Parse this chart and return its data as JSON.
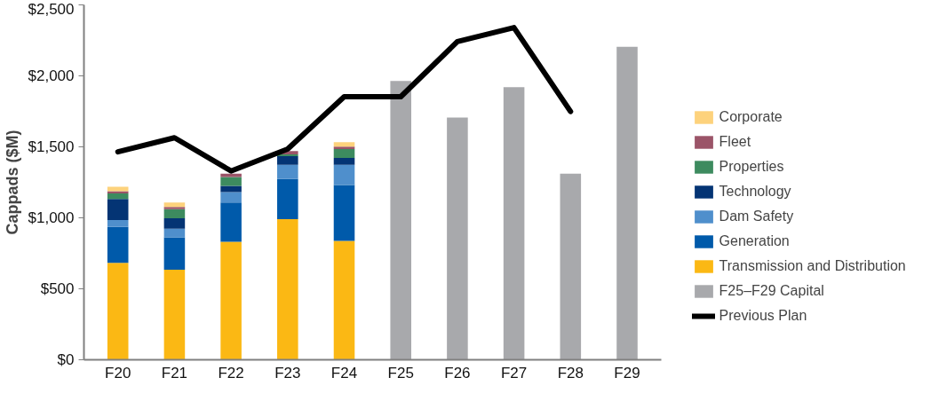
{
  "chart_data": {
    "type": "bar",
    "stacked": true,
    "ylabel": "Cappads ($M)",
    "categories": [
      "F20",
      "F21",
      "F22",
      "F23",
      "F24",
      "F25",
      "F26",
      "F27",
      "F28",
      "F29"
    ],
    "ylim": [
      0,
      2500
    ],
    "yticks": [
      {
        "value": 0,
        "label": "$0"
      },
      {
        "value": 500,
        "label": "$500"
      },
      {
        "value": 1000,
        "label": "$1,000"
      },
      {
        "value": 1500,
        "label": "$1,500"
      },
      {
        "value": 2000,
        "label": "$2,000"
      },
      {
        "value": 2500,
        "label": "$2,500"
      }
    ],
    "grid": false,
    "legend": "right",
    "series": [
      {
        "name": "Transmission and Distribution",
        "color": "#fbb814",
        "values": [
          683,
          634,
          831,
          991,
          837,
          null,
          null,
          null,
          null,
          null
        ]
      },
      {
        "name": "Generation",
        "color": "#005aaa",
        "values": [
          253,
          228,
          277,
          283,
          394,
          null,
          null,
          null,
          null,
          null
        ]
      },
      {
        "name": "Dam Safety",
        "color": "#4f8fcc",
        "values": [
          49,
          62,
          74,
          99,
          142,
          null,
          null,
          null,
          null,
          null
        ]
      },
      {
        "name": "Technology",
        "color": "#043474",
        "values": [
          148,
          73,
          43,
          62,
          49,
          null,
          null,
          null,
          null,
          null
        ]
      },
      {
        "name": "Properties",
        "color": "#3d8b5f",
        "values": [
          39,
          64,
          62,
          12,
          62,
          null,
          null,
          null,
          null,
          null
        ]
      },
      {
        "name": "Fleet",
        "color": "#9b5468",
        "values": [
          16,
          16,
          24,
          24,
          18,
          null,
          null,
          null,
          null,
          null
        ]
      },
      {
        "name": "Corporate",
        "color": "#fdd27c",
        "values": [
          31,
          31,
          null,
          null,
          31,
          null,
          null,
          null,
          null,
          null
        ]
      },
      {
        "name": "F25–F29 Capital",
        "color": "#a8a9ac",
        "values": [
          null,
          null,
          null,
          null,
          null,
          1964,
          1706,
          1921,
          1311,
          2204
        ]
      },
      {
        "name": "Previous Plan",
        "type": "line",
        "color": "#000000",
        "line_style": "solid",
        "values": [
          1465,
          1564,
          1330,
          1484,
          1853,
          1853,
          2241,
          2340,
          1749,
          null
        ]
      }
    ]
  }
}
